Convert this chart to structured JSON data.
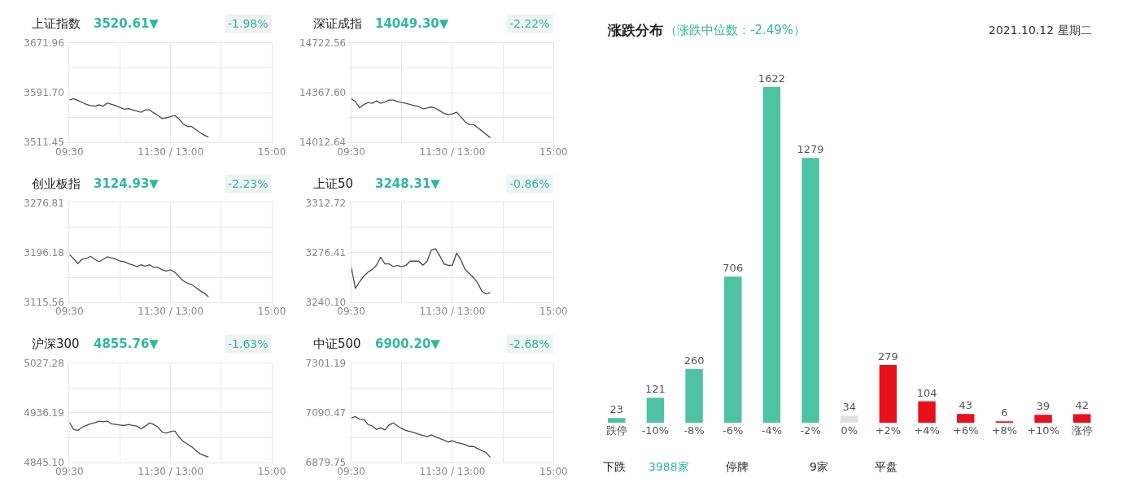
{
  "chart_data": [
    {
      "type": "line",
      "title": "上证指数",
      "subtitle": "3520.61▼",
      "annotations": [
        "-1.98%"
      ],
      "grid": true,
      "ylim": [
        3511.45,
        3671.96
      ],
      "yticks": [
        3511.45,
        {
          "value": 3551.58,
          "label": null
        },
        {
          "value": 3591.7,
          "label": "3591.70"
        },
        {
          "value": 3631.83,
          "label": null
        },
        3671.96
      ],
      "categories": [
        "09:30",
        null,
        null,
        null,
        null,
        null,
        null,
        null,
        null,
        null,
        null,
        null,
        null,
        null,
        null,
        null,
        null,
        null,
        null,
        null,
        null,
        null,
        null,
        null,
        "11:30 / 13:00",
        null,
        null,
        null,
        null,
        null,
        null,
        null,
        null,
        null,
        null,
        null,
        null,
        null,
        null,
        null,
        null,
        null,
        null,
        null,
        null,
        null,
        null,
        null,
        "15:00"
      ],
      "series": [
        {
          "color": "#4a4a4a",
          "values": [
            3580,
            3582,
            3579,
            3576,
            3573,
            3571,
            3570,
            3572,
            3570,
            3575,
            3573,
            3571,
            3568,
            3565,
            3566,
            3564,
            3562,
            3560,
            3564,
            3564,
            3559,
            3555,
            3550,
            3551,
            3553,
            3555,
            3549,
            3541,
            3537,
            3537,
            3532,
            3527,
            3523,
            3520,
            null,
            null,
            null,
            null,
            null,
            null,
            null,
            null,
            null,
            null,
            null,
            null,
            null,
            null,
            null
          ]
        }
      ]
    },
    {
      "type": "line",
      "title": "深证成指",
      "subtitle": "14049.30▼",
      "annotations": [
        "-2.22%"
      ],
      "grid": true,
      "ylim": [
        14012.64,
        14722.56
      ],
      "yticks": [
        14012.64,
        {
          "value": 14190.12,
          "label": null
        },
        {
          "value": 14367.6,
          "label": "14367.60"
        },
        {
          "value": 14545.08,
          "label": null
        },
        14722.56
      ],
      "categories": [
        "09:30",
        null,
        null,
        null,
        null,
        null,
        null,
        null,
        null,
        null,
        null,
        null,
        null,
        null,
        null,
        null,
        null,
        null,
        null,
        null,
        null,
        null,
        null,
        null,
        "11:30 / 13:00",
        null,
        null,
        null,
        null,
        null,
        null,
        null,
        null,
        null,
        null,
        null,
        null,
        null,
        null,
        null,
        null,
        null,
        null,
        null,
        null,
        null,
        null,
        null,
        "15:00"
      ],
      "series": [
        {
          "color": "#4a4a4a",
          "values": [
            14325,
            14304,
            14260,
            14283,
            14297,
            14292,
            14309,
            14292,
            14302,
            14315,
            14315,
            14305,
            14297,
            14292,
            14283,
            14276,
            14268,
            14252,
            14258,
            14266,
            14256,
            14239,
            14220,
            14210,
            14216,
            14228,
            14196,
            14160,
            14140,
            14140,
            14118,
            14094,
            14070,
            14046,
            null,
            null,
            null,
            null,
            null,
            null,
            null,
            null,
            null,
            null,
            null,
            null,
            null,
            null,
            null
          ]
        }
      ]
    },
    {
      "type": "line",
      "title": "创业板指",
      "subtitle": "3124.93▼",
      "annotations": [
        "-2.23%"
      ],
      "grid": true,
      "ylim": [
        3115.56,
        3276.81
      ],
      "yticks": [
        3115.56,
        {
          "value": 3155.87,
          "label": null
        },
        3196.18,
        {
          "value": 3236.5,
          "label": null
        },
        3276.81
      ],
      "categories": [
        "09:30",
        null,
        null,
        null,
        null,
        null,
        null,
        null,
        null,
        null,
        null,
        null,
        null,
        null,
        null,
        null,
        null,
        null,
        null,
        null,
        null,
        null,
        null,
        null,
        "11:30 / 13:00",
        null,
        null,
        null,
        null,
        null,
        null,
        null,
        null,
        null,
        null,
        null,
        null,
        null,
        null,
        null,
        null,
        null,
        null,
        null,
        null,
        null,
        null,
        null,
        "15:00"
      ],
      "series": [
        {
          "color": "#4a4a4a",
          "values": [
            3193,
            3186,
            3178,
            3185,
            3186,
            3190,
            3185,
            3181,
            3185,
            3189,
            3187,
            3185,
            3182,
            3181,
            3178,
            3176,
            3173,
            3176,
            3174,
            3176,
            3172,
            3172,
            3168,
            3166,
            3168,
            3164,
            3157,
            3150,
            3146,
            3144,
            3139,
            3134,
            3130,
            3124,
            null,
            null,
            null,
            null,
            null,
            null,
            null,
            null,
            null,
            null,
            null,
            null,
            null,
            null,
            null
          ]
        }
      ]
    },
    {
      "type": "line",
      "title": "上证50",
      "subtitle": "3248.31▼",
      "annotations": [
        "-0.86%"
      ],
      "grid": true,
      "ylim": [
        3240.1,
        3312.72
      ],
      "yticks": [
        {
          "value": 3240.1,
          "label": "3240.10"
        },
        {
          "value": 3258.26,
          "label": null
        },
        3276.41,
        {
          "value": 3294.57,
          "label": null
        },
        3312.72
      ],
      "categories": [
        "09:30",
        null,
        null,
        null,
        null,
        null,
        null,
        null,
        null,
        null,
        null,
        null,
        null,
        null,
        null,
        null,
        null,
        null,
        null,
        null,
        null,
        null,
        null,
        null,
        "11:30 / 13:00",
        null,
        null,
        null,
        null,
        null,
        null,
        null,
        null,
        null,
        null,
        null,
        null,
        null,
        null,
        null,
        null,
        null,
        null,
        null,
        null,
        null,
        null,
        null,
        "15:00"
      ],
      "series": [
        {
          "color": "#4a4a4a",
          "values": [
            3266,
            3250,
            3255,
            3259,
            3262,
            3264,
            3267,
            3273,
            3268,
            3268,
            3266,
            3267,
            3266,
            3267,
            3270,
            3270,
            3270,
            3267,
            3270,
            3278,
            3279,
            3274,
            3268,
            3267,
            3267,
            3276,
            3271,
            3264,
            3261,
            3258,
            3254,
            3248,
            3246,
            3247,
            null,
            null,
            null,
            null,
            null,
            null,
            null,
            null,
            null,
            null,
            null,
            null,
            null,
            null,
            null
          ]
        }
      ]
    },
    {
      "type": "line",
      "title": "沪深300",
      "subtitle": "4855.76▼",
      "annotations": [
        "-1.63%"
      ],
      "grid": true,
      "ylim": [
        4845.1,
        5027.28
      ],
      "yticks": [
        {
          "value": 4845.1,
          "label": "4845.10"
        },
        {
          "value": 4890.65,
          "label": null
        },
        4936.19,
        {
          "value": 4981.74,
          "label": null
        },
        5027.28
      ],
      "categories": [
        "09:30",
        null,
        null,
        null,
        null,
        null,
        null,
        null,
        null,
        null,
        null,
        null,
        null,
        null,
        null,
        null,
        null,
        null,
        null,
        null,
        null,
        null,
        null,
        null,
        "11:30 / 13:00",
        null,
        null,
        null,
        null,
        null,
        null,
        null,
        null,
        null,
        null,
        null,
        null,
        null,
        null,
        null,
        null,
        null,
        null,
        null,
        null,
        null,
        null,
        null,
        "15:00"
      ],
      "series": [
        {
          "color": "#4a4a4a",
          "values": [
            4919,
            4906,
            4904,
            4910,
            4913,
            4916,
            4918,
            4921,
            4920,
            4921,
            4916,
            4915,
            4914,
            4913,
            4915,
            4913,
            4912,
            4907,
            4912,
            4918,
            4915,
            4910,
            4901,
            4899,
            4902,
            4903,
            4892,
            4884,
            4879,
            4874,
            4867,
            4861,
            4858,
            4855,
            null,
            null,
            null,
            null,
            null,
            null,
            null,
            null,
            null,
            null,
            null,
            null,
            null,
            null,
            null
          ]
        }
      ]
    },
    {
      "type": "line",
      "title": "中证500",
      "subtitle": "6900.20▼",
      "annotations": [
        "-2.68%"
      ],
      "grid": true,
      "ylim": [
        6879.75,
        7301.19
      ],
      "yticks": [
        6879.75,
        {
          "value": 6985.11,
          "label": null
        },
        7090.47,
        {
          "value": 7195.83,
          "label": null
        },
        7301.19
      ],
      "categories": [
        "09:30",
        null,
        null,
        null,
        null,
        null,
        null,
        null,
        null,
        null,
        null,
        null,
        null,
        null,
        null,
        null,
        null,
        null,
        null,
        null,
        null,
        null,
        null,
        null,
        "11:30 / 13:00",
        null,
        null,
        null,
        null,
        null,
        null,
        null,
        null,
        null,
        null,
        null,
        null,
        null,
        null,
        null,
        null,
        null,
        null,
        null,
        null,
        null,
        null,
        null,
        "15:00"
      ],
      "series": [
        {
          "color": "#4a4a4a",
          "values": [
            7068,
            7075,
            7063,
            7063,
            7041,
            7035,
            7020,
            7027,
            7018,
            7040,
            7048,
            7035,
            7024,
            7016,
            7011,
            7006,
            7000,
            6995,
            6990,
            6997,
            6989,
            6982,
            6975,
            6967,
            6972,
            6965,
            6961,
            6956,
            6948,
            6948,
            6939,
            6930,
            6922,
            6902,
            null,
            null,
            null,
            null,
            null,
            null,
            null,
            null,
            null,
            null,
            null,
            null,
            null,
            null,
            null
          ]
        }
      ]
    },
    {
      "type": "bar",
      "title": "涨跌分布",
      "subtitle": "（涨跌中位数：-2.49%）",
      "annotations": [
        "2021.10.12 星期二",
        "下跌",
        "3988家",
        "停牌",
        "9家",
        "平盘"
      ],
      "tick_labels": "x",
      "data_labels": true,
      "categories": [
        "跌停",
        "-10%",
        "-8%",
        "-6%",
        "-4%",
        "-2%",
        "0%",
        "+2%",
        "+4%",
        "+6%",
        "+8%",
        "+10%",
        "涨停"
      ],
      "values": [
        23,
        121,
        260,
        706,
        1622,
        1279,
        34,
        279,
        104,
        43,
        6,
        39,
        42
      ],
      "colors": [
        "#4dc3a3",
        "#4dc3a3",
        "#4dc3a3",
        "#4dc3a3",
        "#4dc3a3",
        "#4dc3a3",
        "#e2e2e2",
        "#e8101a",
        "#e8101a",
        "#e8101a",
        "#e8101a",
        "#e8101a",
        "#e8101a"
      ]
    }
  ]
}
